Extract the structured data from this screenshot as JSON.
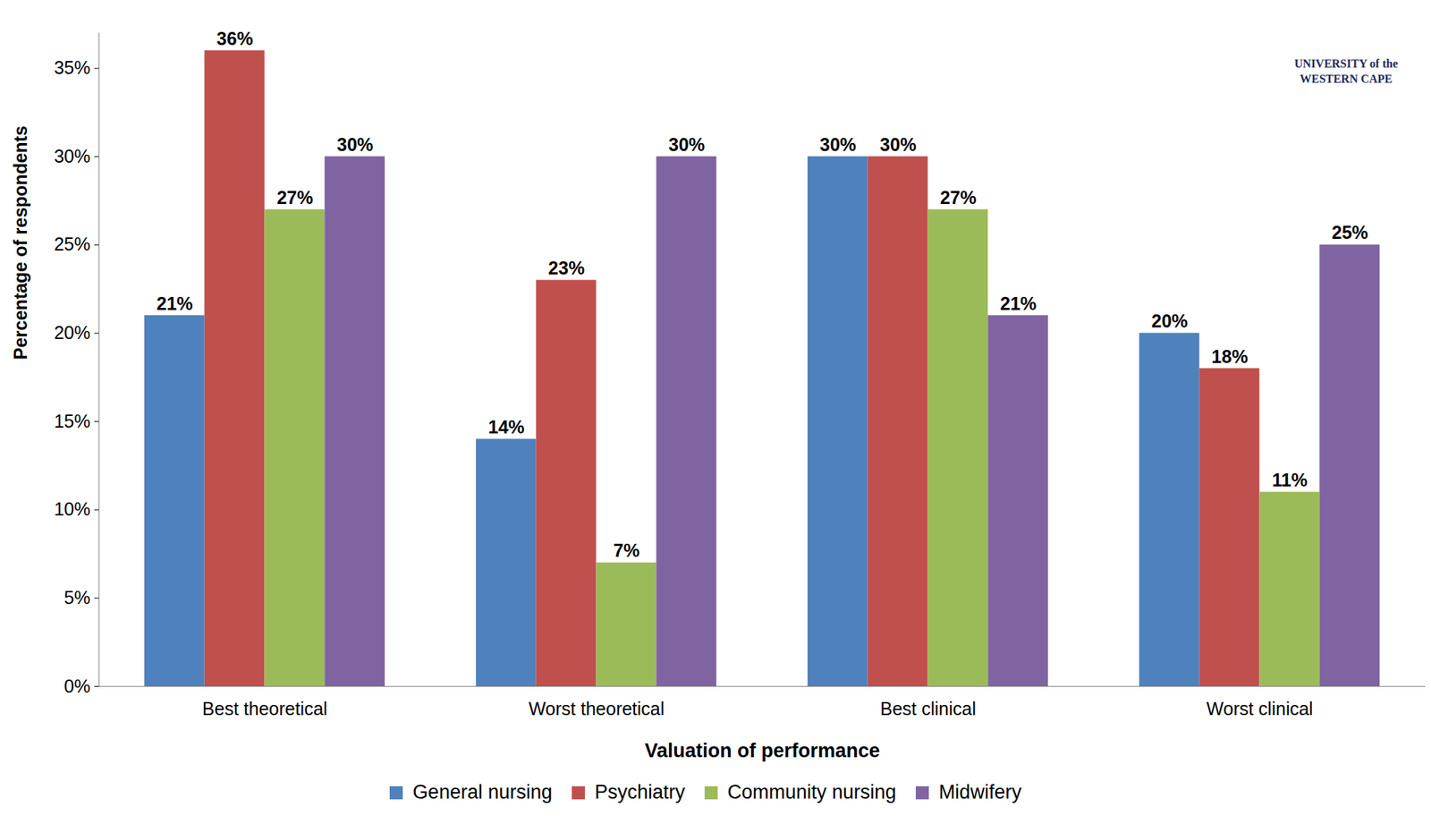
{
  "chart_data": {
    "type": "bar",
    "xlabel": "Valuation of performance",
    "ylabel": "Percentage of respondents",
    "categories": [
      "Best theoretical",
      "Worst theoretical",
      "Best clinical",
      "Worst clinical"
    ],
    "series": [
      {
        "name": "General nursing",
        "color": "#4F81BD",
        "values": [
          21,
          14,
          30,
          20
        ],
        "value_labels": [
          "21%",
          "14%",
          "30%",
          "20%"
        ]
      },
      {
        "name": "Psychiatry",
        "color": "#C0504D",
        "values": [
          36,
          23,
          30,
          18
        ],
        "value_labels": [
          "36%",
          "23%",
          "30%",
          "18%"
        ]
      },
      {
        "name": "Community nursing",
        "color": "#9BBB59",
        "values": [
          27,
          7,
          27,
          11
        ],
        "value_labels": [
          "27%",
          "7%",
          "27%",
          "11%"
        ]
      },
      {
        "name": "Midwifery",
        "color": "#8064A2",
        "values": [
          30,
          30,
          21,
          25
        ],
        "value_labels": [
          "30%",
          "30%",
          "21%",
          "25%"
        ]
      }
    ],
    "ylim": [
      0,
      37
    ],
    "yticks": [
      {
        "value": 0,
        "label": "0%"
      },
      {
        "value": 5,
        "label": "5%"
      },
      {
        "value": 10,
        "label": "10%"
      },
      {
        "value": 15,
        "label": "15%"
      },
      {
        "value": 20,
        "label": "20%"
      },
      {
        "value": 25,
        "label": "25%"
      },
      {
        "value": 30,
        "label": "30%"
      },
      {
        "value": 35,
        "label": "35%"
      }
    ],
    "grid": false,
    "legend": "bottom",
    "data_labels": true,
    "annotations": [
      "UNIVERSITY of the WESTERN CAPE"
    ]
  }
}
